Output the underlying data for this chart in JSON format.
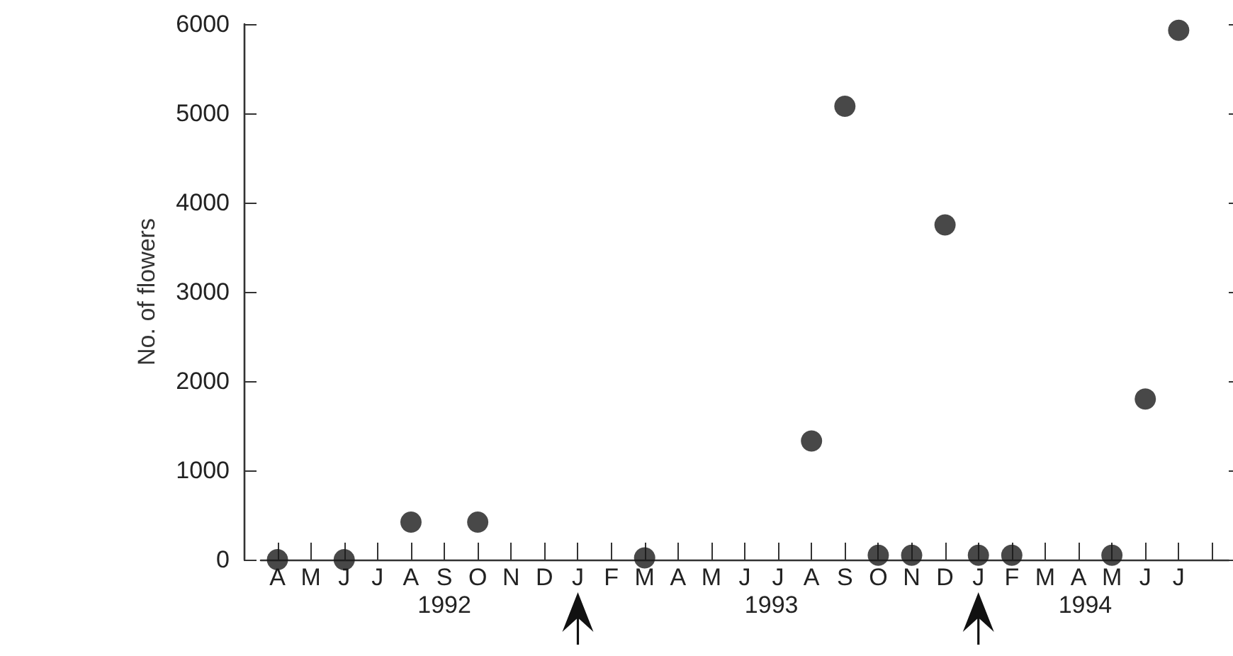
{
  "chart_data": {
    "type": "scatter",
    "ylabel": "No. of flowers",
    "categories": [
      "A",
      "M",
      "J",
      "J",
      "A",
      "S",
      "O",
      "N",
      "D",
      "J",
      "F",
      "M",
      "A",
      "M",
      "J",
      "J",
      "A",
      "S",
      "O",
      "N",
      "D",
      "J",
      "F",
      "M",
      "A",
      "M",
      "J",
      "J",
      null
    ],
    "values": [
      0,
      null,
      0,
      null,
      420,
      null,
      420,
      null,
      null,
      null,
      null,
      20,
      null,
      null,
      null,
      null,
      1330,
      5080,
      50,
      50,
      3750,
      50,
      50,
      null,
      null,
      50,
      1800,
      5930,
      null
    ],
    "color": "#1a1a1a",
    "marker": "circle",
    "ylim": [
      0,
      6000
    ],
    "yticks": [
      0,
      1000,
      2000,
      3000,
      4000,
      5000,
      6000
    ],
    "grid": false,
    "annotations": [
      "1992",
      "1993",
      "1994"
    ]
  }
}
